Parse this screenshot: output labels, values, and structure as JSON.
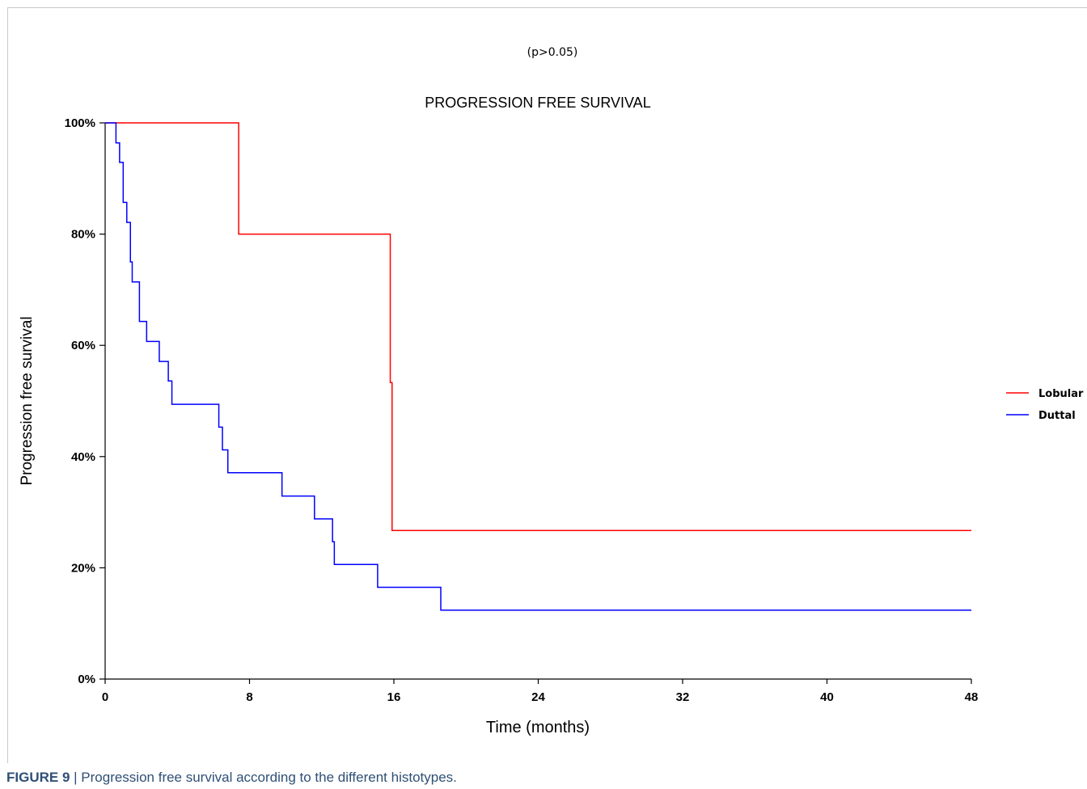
{
  "chart_data": {
    "type": "line",
    "step": true,
    "pvalue_text": "(p>0.05)",
    "title": "PROGRESSION FREE SURVIVAL",
    "xlabel": "Time (months)",
    "ylabel": "Progression free survival",
    "xlim": [
      0,
      48
    ],
    "ylim": [
      0,
      100
    ],
    "x_ticks": [
      0,
      8,
      16,
      24,
      32,
      40,
      48
    ],
    "y_ticks": [
      0,
      20,
      40,
      60,
      80,
      100
    ],
    "y_tick_labels": [
      "0%",
      "20%",
      "40%",
      "60%",
      "80%",
      "100%"
    ],
    "legend_position": "right",
    "series": [
      {
        "name": "Lobular",
        "color": "#ff0000",
        "x": [
          0,
          7.4,
          15.8,
          15.9,
          48
        ],
        "y": [
          100,
          80,
          53.3,
          26.7,
          26.7
        ]
      },
      {
        "name": "Duttal",
        "color": "#0000ff",
        "x": [
          0,
          0.6,
          0.8,
          1.0,
          1.2,
          1.4,
          1.5,
          1.6,
          1.9,
          2.3,
          3.0,
          3.5,
          3.7,
          6.3,
          6.5,
          6.8,
          9.8,
          11.6,
          12.6,
          12.7,
          15.1,
          15.5,
          18.6,
          48
        ],
        "y": [
          100,
          96.4,
          92.9,
          85.7,
          82.1,
          75.0,
          71.4,
          71.4,
          64.3,
          60.7,
          57.1,
          53.6,
          49.4,
          45.3,
          41.2,
          37.1,
          32.9,
          28.8,
          24.7,
          20.6,
          16.5,
          16.5,
          12.4,
          12.4
        ]
      }
    ]
  },
  "caption": {
    "label": "FIGURE 9",
    "separator": " | ",
    "text": "Progression free survival according to the different histotypes."
  }
}
